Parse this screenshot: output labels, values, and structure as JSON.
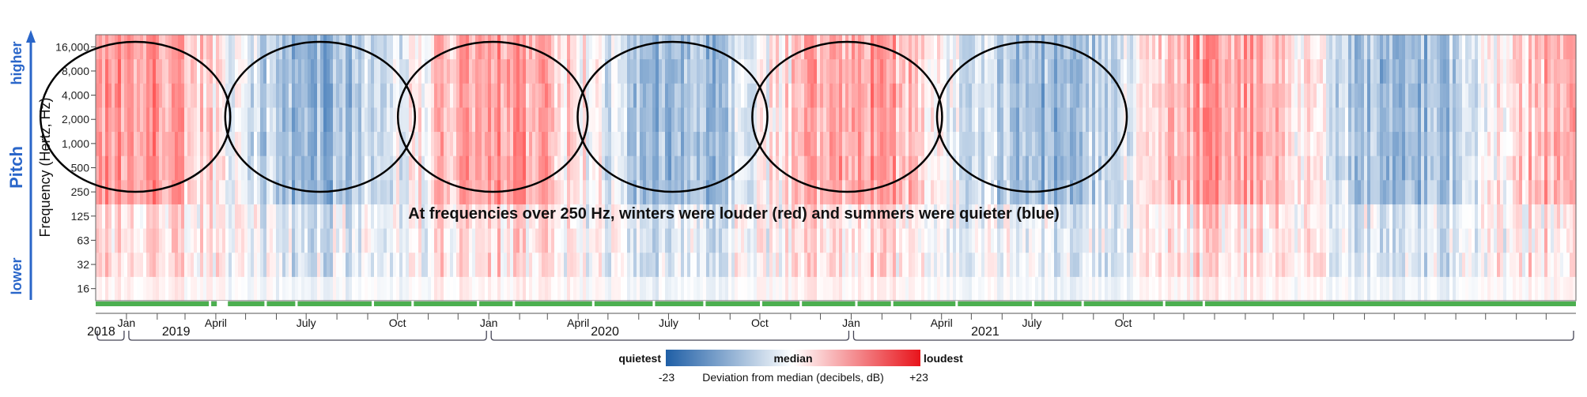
{
  "chart_data": {
    "type": "heatmap",
    "ylabel": "Frequency (Hertz, Hz)",
    "y_scale": "log",
    "y_ticks": [
      "16",
      "32",
      "63",
      "125",
      "250",
      "500",
      "1,000",
      "2,000",
      "4,000",
      "8,000",
      "16,000"
    ],
    "y_tick_values": [
      16,
      32,
      63,
      125,
      250,
      500,
      1000,
      2000,
      4000,
      8000,
      16000
    ],
    "pitch_axis": {
      "label": "Pitch",
      "high": "higher",
      "low": "lower"
    },
    "x_range": [
      "2017-12-01",
      "2021-12-31"
    ],
    "month_labels": [
      {
        "label": "Jan",
        "date": "2018-01-01"
      },
      {
        "label": "April",
        "date": "2018-04-01"
      },
      {
        "label": "July",
        "date": "2018-07-01"
      },
      {
        "label": "Oct",
        "date": "2018-10-01"
      },
      {
        "label": "Jan",
        "date": "2019-01-01"
      },
      {
        "label": "April",
        "date": "2019-04-01"
      },
      {
        "label": "July",
        "date": "2019-07-01"
      },
      {
        "label": "Oct",
        "date": "2019-10-01"
      },
      {
        "label": "Jan",
        "date": "2020-01-01"
      },
      {
        "label": "April",
        "date": "2020-04-01"
      },
      {
        "label": "July",
        "date": "2020-07-01"
      },
      {
        "label": "Oct",
        "date": "2020-10-01"
      }
    ],
    "year_labels": [
      "2018",
      "2019",
      "2020",
      "2021"
    ],
    "annotation": "At frequencies over 250 Hz, winters were louder (red) and summers were quieter (blue)",
    "seasons": [
      {
        "type": "winter",
        "center": "2018-01-10"
      },
      {
        "type": "summer",
        "center": "2018-07-15"
      },
      {
        "type": "winter",
        "center": "2019-01-05"
      },
      {
        "type": "summer",
        "center": "2019-07-05"
      },
      {
        "type": "winter",
        "center": "2019-12-28"
      },
      {
        "type": "summer",
        "center": "2020-07-01"
      }
    ],
    "legend": {
      "min_label": "quietest",
      "mid_label": "median",
      "max_label": "loudest",
      "min_value": "-23",
      "max_value": "+23",
      "title": "Deviation from median (decibels, dB)",
      "colors": [
        "#1f5fa6",
        "#ffffff",
        "#e8141b"
      ]
    }
  }
}
